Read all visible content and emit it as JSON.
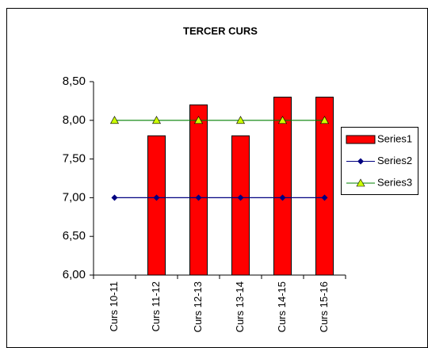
{
  "chart_data": {
    "type": "bar",
    "title": "TERCER CURS",
    "categories": [
      "Curs 10-11",
      "Curs 11-12",
      "Curs 12-13",
      "Curs 13-14",
      "Curs 14-15",
      "Curs 15-16"
    ],
    "series": [
      {
        "name": "Series1",
        "type": "bar",
        "color": "#ff0000",
        "values": [
          null,
          7.8,
          8.2,
          7.8,
          8.3,
          8.3
        ]
      },
      {
        "name": "Series2",
        "type": "line",
        "color": "#000080",
        "marker": "diamond",
        "marker_color": "#000080",
        "values": [
          7,
          7,
          7,
          7,
          7,
          7
        ]
      },
      {
        "name": "Series3",
        "type": "line",
        "color": "#008000",
        "marker": "triangle",
        "marker_color": "#ccff00",
        "values": [
          8,
          8,
          8,
          8,
          8,
          8
        ]
      }
    ],
    "ylim": [
      6,
      8.5
    ],
    "yticks": [
      {
        "value": 6,
        "label": "6,00"
      },
      {
        "value": 6.5,
        "label": "6,50"
      },
      {
        "value": 7,
        "label": "7,00"
      },
      {
        "value": 7.5,
        "label": "7,50"
      },
      {
        "value": 8,
        "label": "8,00"
      },
      {
        "value": 8.5,
        "label": "8,50"
      }
    ],
    "grid": false,
    "legend": "right"
  }
}
